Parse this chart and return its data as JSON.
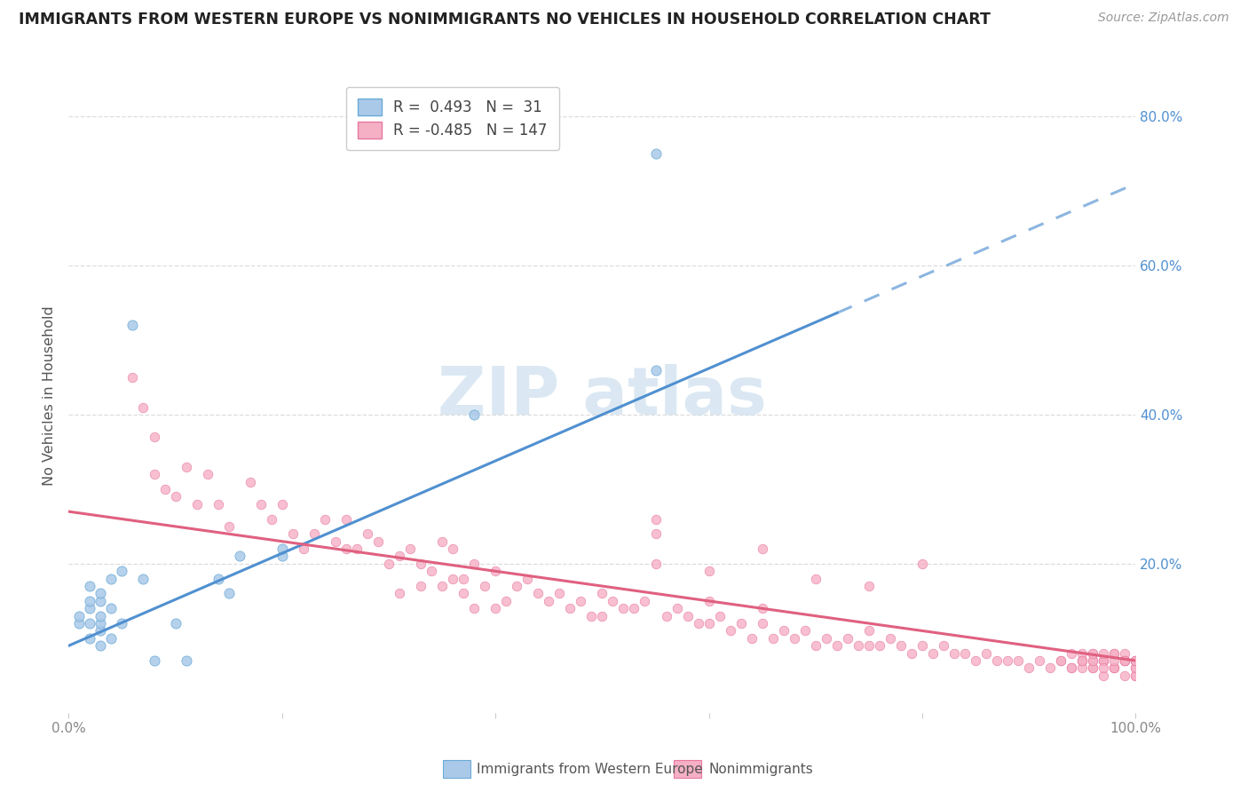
{
  "title": "IMMIGRANTS FROM WESTERN EUROPE VS NONIMMIGRANTS NO VEHICLES IN HOUSEHOLD CORRELATION CHART",
  "source": "Source: ZipAtlas.com",
  "legend_blue_label": "Immigrants from Western Europe",
  "legend_pink_label": "Nonimmigrants",
  "ylabel": "No Vehicles in Household",
  "blue_R": 0.493,
  "blue_N": 31,
  "pink_R": -0.485,
  "pink_N": 147,
  "blue_dot_color": "#aac9e8",
  "pink_dot_color": "#f5b0c5",
  "blue_edge_color": "#6aaad8",
  "pink_edge_color": "#e878a0",
  "blue_line_color": "#5090d0",
  "pink_line_color": "#e06080",
  "watermark_color": "#c8dced",
  "grid_color": "#d8d8d8",
  "title_color": "#222222",
  "source_color": "#999999",
  "ylabel_color": "#555555",
  "ytick_color": "#5090d0",
  "xtick_color": "#888888",
  "xlim": [
    0.0,
    1.0
  ],
  "ylim": [
    0.0,
    0.85
  ],
  "ytick_vals": [
    0.2,
    0.4,
    0.6,
    0.8
  ],
  "xtick_vals": [
    0.0,
    0.2,
    0.4,
    0.6,
    0.8,
    1.0
  ],
  "xtick_labels": [
    "0.0%",
    "",
    "",
    "",
    "",
    "100.0%"
  ],
  "blue_line_x_solid_start": 0.0,
  "blue_line_x_solid_end": 0.72,
  "blue_line_y_at_0": 0.09,
  "blue_line_slope": 0.62,
  "pink_line_y_at_0": 0.27,
  "pink_line_slope": -0.2,
  "blue_scatter_x": [
    0.01,
    0.01,
    0.02,
    0.02,
    0.02,
    0.02,
    0.02,
    0.03,
    0.03,
    0.03,
    0.03,
    0.03,
    0.03,
    0.04,
    0.04,
    0.04,
    0.05,
    0.05,
    0.06,
    0.07,
    0.08,
    0.1,
    0.11,
    0.14,
    0.15,
    0.16,
    0.2,
    0.2,
    0.38,
    0.55,
    0.55
  ],
  "blue_scatter_y": [
    0.12,
    0.13,
    0.1,
    0.12,
    0.14,
    0.15,
    0.17,
    0.09,
    0.11,
    0.12,
    0.13,
    0.15,
    0.16,
    0.1,
    0.14,
    0.18,
    0.12,
    0.19,
    0.52,
    0.18,
    0.07,
    0.12,
    0.07,
    0.18,
    0.16,
    0.21,
    0.21,
    0.22,
    0.4,
    0.46,
    0.75
  ],
  "pink_scatter_x": [
    0.06,
    0.07,
    0.08,
    0.08,
    0.09,
    0.1,
    0.11,
    0.12,
    0.13,
    0.14,
    0.15,
    0.17,
    0.18,
    0.19,
    0.2,
    0.21,
    0.22,
    0.23,
    0.24,
    0.25,
    0.26,
    0.26,
    0.27,
    0.28,
    0.29,
    0.3,
    0.31,
    0.31,
    0.32,
    0.33,
    0.33,
    0.34,
    0.35,
    0.35,
    0.36,
    0.36,
    0.37,
    0.37,
    0.38,
    0.38,
    0.39,
    0.4,
    0.4,
    0.41,
    0.42,
    0.43,
    0.44,
    0.45,
    0.46,
    0.47,
    0.48,
    0.49,
    0.5,
    0.5,
    0.51,
    0.52,
    0.53,
    0.54,
    0.55,
    0.56,
    0.57,
    0.58,
    0.59,
    0.6,
    0.6,
    0.61,
    0.62,
    0.63,
    0.64,
    0.65,
    0.65,
    0.66,
    0.67,
    0.68,
    0.69,
    0.7,
    0.71,
    0.72,
    0.73,
    0.74,
    0.75,
    0.75,
    0.76,
    0.77,
    0.78,
    0.79,
    0.8,
    0.81,
    0.82,
    0.83,
    0.84,
    0.85,
    0.86,
    0.87,
    0.88,
    0.89,
    0.9,
    0.91,
    0.92,
    0.93,
    0.94,
    0.95,
    0.95,
    0.96,
    0.96,
    0.97,
    0.97,
    0.98,
    0.98,
    0.99,
    0.99,
    1.0,
    1.0,
    1.0,
    0.93,
    0.94,
    0.95,
    0.96,
    0.97,
    0.98,
    0.99,
    1.0,
    0.95,
    0.96,
    0.97,
    0.98,
    0.99,
    1.0,
    0.94,
    0.95,
    0.96,
    0.97,
    0.98,
    0.99,
    1.0,
    0.96,
    0.97,
    0.98,
    0.99,
    1.0,
    0.55,
    0.6,
    0.65,
    0.7,
    0.75,
    0.8,
    0.55
  ],
  "pink_scatter_y": [
    0.45,
    0.41,
    0.37,
    0.32,
    0.3,
    0.29,
    0.33,
    0.28,
    0.32,
    0.28,
    0.25,
    0.31,
    0.28,
    0.26,
    0.28,
    0.24,
    0.22,
    0.24,
    0.26,
    0.23,
    0.22,
    0.26,
    0.22,
    0.24,
    0.23,
    0.2,
    0.21,
    0.16,
    0.22,
    0.2,
    0.17,
    0.19,
    0.17,
    0.23,
    0.18,
    0.22,
    0.16,
    0.18,
    0.14,
    0.2,
    0.17,
    0.14,
    0.19,
    0.15,
    0.17,
    0.18,
    0.16,
    0.15,
    0.16,
    0.14,
    0.15,
    0.13,
    0.13,
    0.16,
    0.15,
    0.14,
    0.14,
    0.15,
    0.24,
    0.13,
    0.14,
    0.13,
    0.12,
    0.12,
    0.15,
    0.13,
    0.11,
    0.12,
    0.1,
    0.12,
    0.14,
    0.1,
    0.11,
    0.1,
    0.11,
    0.09,
    0.1,
    0.09,
    0.1,
    0.09,
    0.09,
    0.11,
    0.09,
    0.1,
    0.09,
    0.08,
    0.09,
    0.08,
    0.09,
    0.08,
    0.08,
    0.07,
    0.08,
    0.07,
    0.07,
    0.07,
    0.06,
    0.07,
    0.06,
    0.07,
    0.06,
    0.07,
    0.06,
    0.06,
    0.07,
    0.05,
    0.07,
    0.06,
    0.06,
    0.07,
    0.05,
    0.06,
    0.05,
    0.05,
    0.07,
    0.06,
    0.07,
    0.06,
    0.07,
    0.06,
    0.07,
    0.06,
    0.08,
    0.08,
    0.07,
    0.07,
    0.08,
    0.07,
    0.08,
    0.07,
    0.07,
    0.08,
    0.08,
    0.07,
    0.07,
    0.08,
    0.06,
    0.08,
    0.07,
    0.07,
    0.2,
    0.19,
    0.22,
    0.18,
    0.17,
    0.2,
    0.26
  ]
}
